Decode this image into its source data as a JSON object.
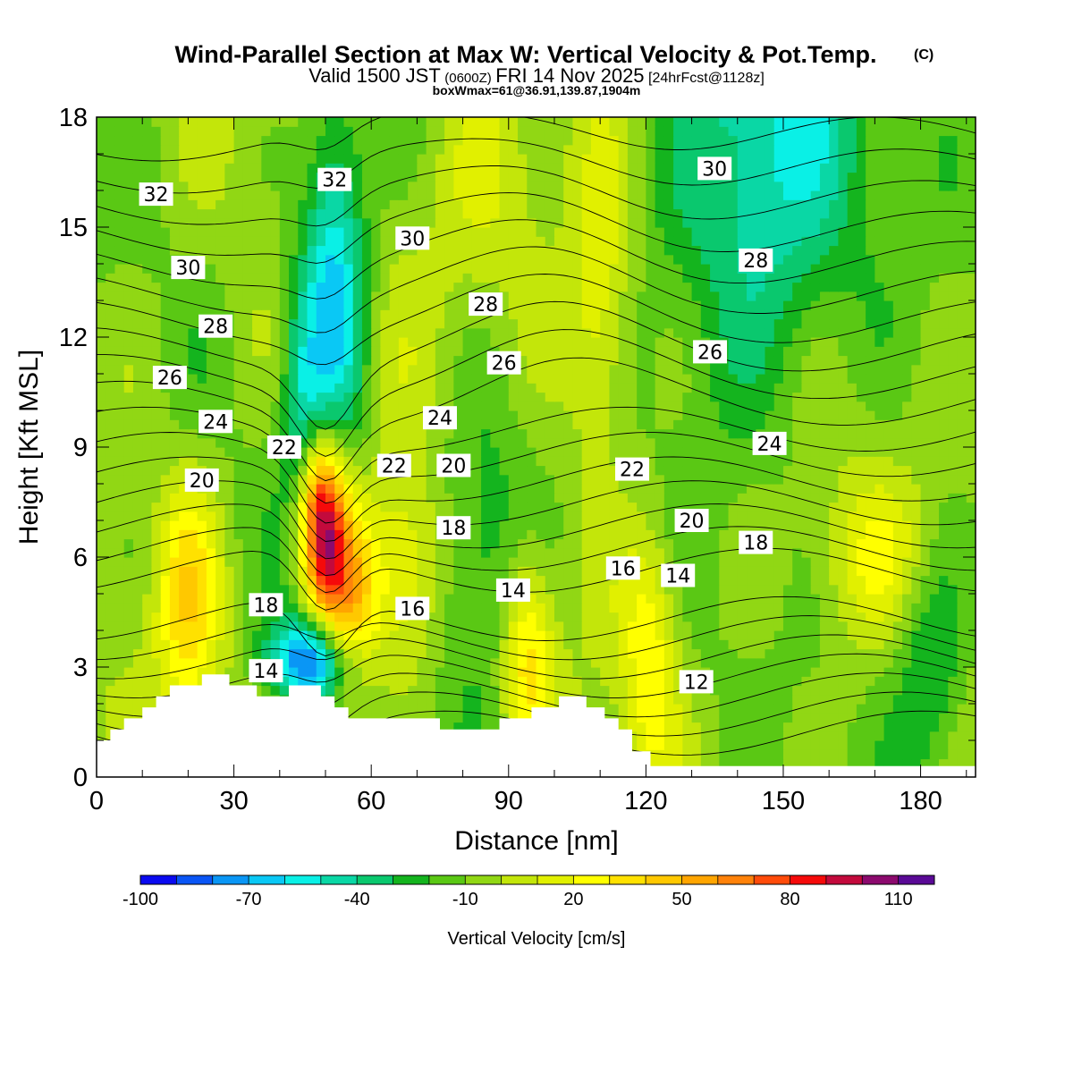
{
  "chart_data": {
    "type": "heatmap",
    "title": "Wind-Parallel Section at Max W: Vertical Velocity & Pot.Temp.",
    "title_mark": "(C)",
    "subtitle_prefix": "Valid 1500 JST",
    "subtitle_zulu": "(0600Z)",
    "subtitle_date": "FRI 14 Nov 2025",
    "subtitle_fcst": "[24hrFcst@1128z]",
    "subtitle2": "boxWmax=61@36.91,139.87,1904m",
    "xlabel": "Distance [nm]",
    "ylabel": "Height [Kft MSL]",
    "xlim": [
      0,
      192
    ],
    "ylim": [
      0,
      18
    ],
    "x_ticks": [
      0,
      30,
      60,
      90,
      120,
      150,
      180
    ],
    "y_ticks": [
      0,
      3,
      6,
      9,
      12,
      15,
      18
    ],
    "colorbar": {
      "label": "Vertical Velocity [cm/s]",
      "min": -100,
      "max": 120,
      "step": 10,
      "tick_values": [
        -100,
        -70,
        -40,
        -10,
        20,
        50,
        80,
        110
      ],
      "tick_labels": [
        "-100",
        "-70",
        "-40",
        "-10",
        "20",
        "50",
        "80",
        "110"
      ],
      "colors": [
        "#0a0af0",
        "#0a55f5",
        "#0a96f5",
        "#0ac8f5",
        "#0af0e6",
        "#0ad7a5",
        "#0ac86e",
        "#14b41e",
        "#5ac814",
        "#91d714",
        "#c3e60a",
        "#e1f000",
        "#ffff00",
        "#ffe100",
        "#ffc800",
        "#ffa500",
        "#ff820a",
        "#ff4b0a",
        "#f50a0a",
        "#c30a3c",
        "#8c0a6e",
        "#5a0a96"
      ]
    },
    "theta_labels": [
      {
        "text": "32",
        "x": 13,
        "y": 15.9
      },
      {
        "text": "32",
        "x": 52,
        "y": 16.3
      },
      {
        "text": "30",
        "x": 20,
        "y": 13.9
      },
      {
        "text": "30",
        "x": 69,
        "y": 14.7
      },
      {
        "text": "30",
        "x": 135,
        "y": 16.6
      },
      {
        "text": "28",
        "x": 26,
        "y": 12.3
      },
      {
        "text": "28",
        "x": 85,
        "y": 12.9
      },
      {
        "text": "28",
        "x": 144,
        "y": 14.1
      },
      {
        "text": "26",
        "x": 16,
        "y": 10.9
      },
      {
        "text": "26",
        "x": 89,
        "y": 11.3
      },
      {
        "text": "26",
        "x": 134,
        "y": 11.6
      },
      {
        "text": "24",
        "x": 26,
        "y": 9.7
      },
      {
        "text": "24",
        "x": 75,
        "y": 9.8
      },
      {
        "text": "24",
        "x": 147,
        "y": 9.1
      },
      {
        "text": "22",
        "x": 41,
        "y": 9.0
      },
      {
        "text": "22",
        "x": 65,
        "y": 8.5
      },
      {
        "text": "22",
        "x": 117,
        "y": 8.4
      },
      {
        "text": "20",
        "x": 23,
        "y": 8.1
      },
      {
        "text": "20",
        "x": 78,
        "y": 8.5
      },
      {
        "text": "20",
        "x": 130,
        "y": 7.0
      },
      {
        "text": "18",
        "x": 78,
        "y": 6.8
      },
      {
        "text": "18",
        "x": 144,
        "y": 6.4
      },
      {
        "text": "18",
        "x": 37,
        "y": 4.7
      },
      {
        "text": "16",
        "x": 115,
        "y": 5.7
      },
      {
        "text": "16",
        "x": 69,
        "y": 4.6
      },
      {
        "text": "14",
        "x": 91,
        "y": 5.1
      },
      {
        "text": "14",
        "x": 127,
        "y": 5.5
      },
      {
        "text": "14",
        "x": 37,
        "y": 2.9
      },
      {
        "text": "12",
        "x": 131,
        "y": 2.6
      }
    ],
    "terrain_kft": [
      [
        0,
        1.0
      ],
      [
        3,
        1.0
      ],
      [
        3,
        1.3
      ],
      [
        6,
        1.3
      ],
      [
        6,
        1.6
      ],
      [
        10,
        1.6
      ],
      [
        10,
        1.9
      ],
      [
        13,
        1.9
      ],
      [
        13,
        2.2
      ],
      [
        16,
        2.2
      ],
      [
        16,
        2.5
      ],
      [
        23,
        2.5
      ],
      [
        23,
        2.8
      ],
      [
        29,
        2.8
      ],
      [
        29,
        2.5
      ],
      [
        35,
        2.5
      ],
      [
        35,
        2.2
      ],
      [
        42,
        2.2
      ],
      [
        42,
        2.5
      ],
      [
        49,
        2.5
      ],
      [
        49,
        2.2
      ],
      [
        52,
        2.2
      ],
      [
        52,
        1.9
      ],
      [
        55,
        1.9
      ],
      [
        55,
        1.6
      ],
      [
        75,
        1.6
      ],
      [
        75,
        1.3
      ],
      [
        88,
        1.3
      ],
      [
        88,
        1.6
      ],
      [
        95,
        1.6
      ],
      [
        95,
        1.9
      ],
      [
        101,
        1.9
      ],
      [
        101,
        2.2
      ],
      [
        107,
        2.2
      ],
      [
        107,
        1.9
      ],
      [
        111,
        1.9
      ],
      [
        111,
        1.6
      ],
      [
        114,
        1.6
      ],
      [
        114,
        1.3
      ],
      [
        117,
        1.3
      ],
      [
        117,
        0.7
      ],
      [
        121,
        0.7
      ],
      [
        121,
        0.3
      ],
      [
        192,
        0.3
      ],
      [
        192,
        0
      ]
    ],
    "w_features": [
      {
        "x": 49,
        "y": 7.2,
        "sx": 3.5,
        "sy": 1.6,
        "v": 100
      },
      {
        "x": 52,
        "y": 5.0,
        "sx": 4.0,
        "sy": 2.0,
        "v": 35
      },
      {
        "x": 57,
        "y": 5.0,
        "sx": 4.5,
        "sy": 1.8,
        "v": 40
      },
      {
        "x": 47,
        "y": 3.2,
        "sx": 6.0,
        "sy": 0.8,
        "v": -80
      },
      {
        "x": 52,
        "y": 13.5,
        "sx": 5.0,
        "sy": 3.5,
        "v": -60
      },
      {
        "x": 45,
        "y": 10.0,
        "sx": 3.5,
        "sy": 2.5,
        "v": -35
      },
      {
        "x": 20,
        "y": 5.0,
        "sx": 5.0,
        "sy": 2.3,
        "v": 40
      },
      {
        "x": 94,
        "y": 3.5,
        "sx": 4.0,
        "sy": 2.0,
        "v": 45
      },
      {
        "x": 121,
        "y": 3.5,
        "sx": 4.5,
        "sy": 2.5,
        "v": 35
      },
      {
        "x": 145,
        "y": 17.0,
        "sx": 15.0,
        "sy": 4.5,
        "v": -50
      },
      {
        "x": 110,
        "y": 12.5,
        "sx": 5.0,
        "sy": 3.0,
        "v": 30
      },
      {
        "x": 88,
        "y": 16.0,
        "sx": 12.0,
        "sy": 3.0,
        "v": 20
      },
      {
        "x": 85,
        "y": 6.0,
        "sx": 8.0,
        "sy": 3.0,
        "v": -30
      },
      {
        "x": 170,
        "y": 6.0,
        "sx": 10.0,
        "sy": 1.5,
        "v": 20
      },
      {
        "x": 182,
        "y": 3.0,
        "sx": 6.0,
        "sy": 2.5,
        "v": -30
      },
      {
        "x": 68,
        "y": 5.5,
        "sx": 5.0,
        "sy": 2.0,
        "v": 30
      }
    ]
  }
}
